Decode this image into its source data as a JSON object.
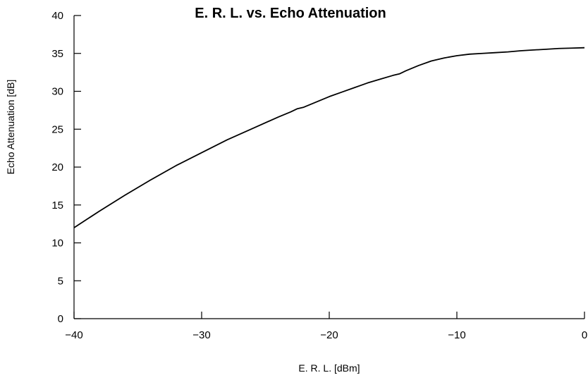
{
  "chart_data": {
    "type": "line",
    "title": "E. R. L. vs. Echo Attenuation",
    "xlabel": "E. R. L. [dBm]",
    "ylabel": "Echo Attenuation [dB]",
    "xlim": [
      -40,
      0
    ],
    "ylim": [
      0,
      40
    ],
    "x_ticks": [
      -40,
      -30,
      -20,
      -10,
      0
    ],
    "x_tick_labels": [
      "−40",
      "−30",
      "−20",
      "−10",
      "0"
    ],
    "y_ticks": [
      0,
      5,
      10,
      15,
      20,
      25,
      30,
      35,
      40
    ],
    "y_tick_labels": [
      "0",
      "5",
      "10",
      "15",
      "20",
      "25",
      "30",
      "35",
      "40"
    ],
    "grid": false,
    "series": [
      {
        "color": "#000000",
        "x": [
          -40,
          -38,
          -36,
          -34,
          -32,
          -30,
          -28,
          -26,
          -24,
          -23,
          -22.5,
          -22,
          -21,
          -20,
          -19,
          -18,
          -17,
          -16,
          -15,
          -14.5,
          -14,
          -13,
          -12,
          -11,
          -10,
          -9,
          -8,
          -7,
          -6,
          -5,
          -4,
          -3,
          -2,
          -1,
          0
        ],
        "y": [
          12.0,
          14.2,
          16.3,
          18.3,
          20.2,
          21.9,
          23.6,
          25.1,
          26.6,
          27.3,
          27.7,
          27.9,
          28.6,
          29.3,
          29.9,
          30.5,
          31.1,
          31.6,
          32.1,
          32.3,
          32.7,
          33.4,
          34.0,
          34.4,
          34.7,
          34.9,
          35.0,
          35.1,
          35.2,
          35.35,
          35.45,
          35.55,
          35.65,
          35.7,
          35.75
        ]
      }
    ]
  }
}
